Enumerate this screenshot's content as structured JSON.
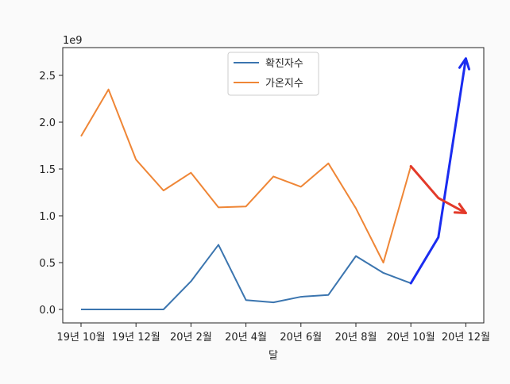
{
  "chart_data": {
    "type": "line",
    "title": "",
    "xlabel": "달",
    "ylabel": "",
    "y_offset_label": "1e9",
    "ylim": [
      -0.12,
      2.8
    ],
    "yticks": [
      "0.0",
      "0.5",
      "1.0",
      "1.5",
      "2.0",
      "2.5"
    ],
    "ytick_values": [
      0.0,
      0.5,
      1.0,
      1.5,
      2.0,
      2.5
    ],
    "x": [
      "19년 10월",
      "19년 11월",
      "19년 12월",
      "20년 1월",
      "20년 2월",
      "20년 3월",
      "20년 4월",
      "20년 5월",
      "20년 6월",
      "20년 7월",
      "20년 8월",
      "20년 9월",
      "20년 10월",
      "20년 11월",
      "20년 12월"
    ],
    "xticks": [
      "19년 10월",
      "19년 12월",
      "20년 2월",
      "20년 4월",
      "20년 6월",
      "20년 8월",
      "20년 10월",
      "20년 12월"
    ],
    "xtick_indices": [
      0,
      2,
      4,
      6,
      8,
      10,
      12,
      14
    ],
    "series": [
      {
        "name": "확진자수",
        "color": "#3b75af",
        "values": [
          0.0,
          0.0,
          0.0,
          0.0,
          0.3,
          0.69,
          0.1,
          0.075,
          0.135,
          0.155,
          0.57,
          0.39,
          0.28,
          null,
          null
        ]
      },
      {
        "name": "가온지수",
        "color": "#ef8636",
        "values": [
          1.85,
          2.35,
          1.6,
          1.27,
          1.46,
          1.09,
          1.1,
          1.42,
          1.31,
          1.56,
          1.08,
          0.5,
          1.53,
          null,
          null
        ]
      }
    ],
    "annotations": [
      {
        "color": "#1a2cf0",
        "x_indices": [
          12,
          13,
          14
        ],
        "values": [
          0.28,
          0.77,
          2.68
        ],
        "arrow": true
      },
      {
        "color": "#e33a2a",
        "x_indices": [
          12,
          13,
          14
        ],
        "values": [
          1.53,
          1.19,
          1.03
        ],
        "arrow": true
      }
    ],
    "legend": "top-center",
    "grid": false
  }
}
